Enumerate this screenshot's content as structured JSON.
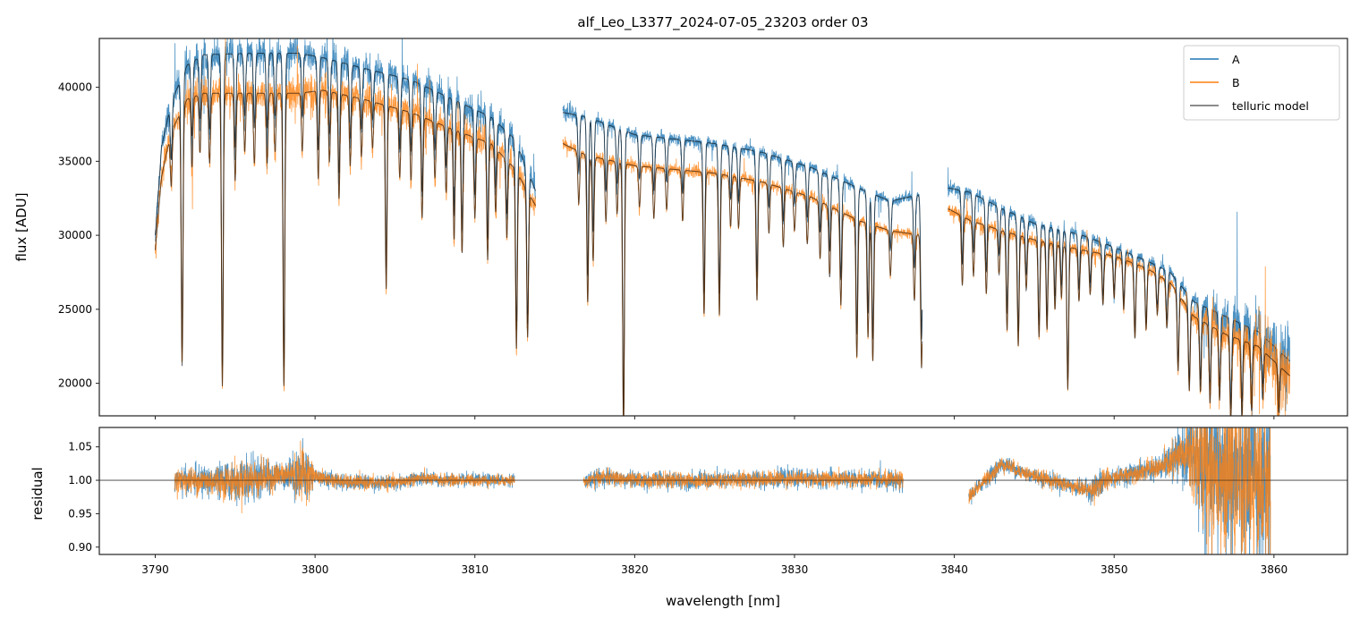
{
  "chart_data": [
    {
      "type": "line",
      "title": "alf_Leo_L3377_2024-07-05_23203  order 03",
      "xlabel": "",
      "ylabel": "flux [ADU]",
      "xlim": [
        3786.5,
        3864.6
      ],
      "ylim": [
        17800,
        43300
      ],
      "xticks": [
        3790,
        3800,
        3810,
        3820,
        3830,
        3840,
        3850,
        3860
      ],
      "yticks": [
        20000,
        25000,
        30000,
        35000,
        40000
      ],
      "ytick_labels": [
        "20000",
        "25000",
        "30000",
        "35000",
        "40000"
      ],
      "legend": {
        "placement": "top-right",
        "entries": [
          "A",
          "B",
          "telluric model"
        ]
      },
      "colors": {
        "A": "#1f77b4",
        "B": "#ff7f0e",
        "telluric model": "#000000"
      },
      "segments": [
        {
          "range": [
            3790.0,
            3813.8
          ],
          "A_continuum": [
            [
              3790.0,
              30000
            ],
            [
              3790.4,
              36000
            ],
            [
              3791.0,
              39000
            ],
            [
              3792.0,
              41500
            ],
            [
              3793.0,
              42200
            ],
            [
              3796.0,
              42300
            ],
            [
              3799.0,
              42300
            ],
            [
              3800.5,
              42000
            ],
            [
              3803,
              41300
            ],
            [
              3806,
              40500
            ],
            [
              3809,
              39000
            ],
            [
              3811,
              38000
            ],
            [
              3812.5,
              36500
            ],
            [
              3813.8,
              33000
            ]
          ],
          "B_continuum": [
            [
              3790.0,
              29000
            ],
            [
              3790.4,
              34000
            ],
            [
              3791.0,
              37000
            ],
            [
              3792.0,
              39200
            ],
            [
              3793.0,
              39600
            ],
            [
              3796.0,
              39600
            ],
            [
              3799.0,
              39600
            ],
            [
              3800.5,
              39800
            ],
            [
              3803,
              39200
            ],
            [
              3806,
              38300
            ],
            [
              3809,
              37000
            ],
            [
              3811,
              36200
            ],
            [
              3812.5,
              34500
            ],
            [
              3813.8,
              32000
            ]
          ],
          "noise": 0.022
        },
        {
          "range": [
            3815.5,
            3838.0
          ],
          "A_continuum": [
            [
              3815.5,
              38300
            ],
            [
              3817,
              38000
            ],
            [
              3820,
              36800
            ],
            [
              3825,
              36200
            ],
            [
              3828,
              35600
            ],
            [
              3831,
              34600
            ],
            [
              3834,
              33200
            ],
            [
              3836,
              32300
            ],
            [
              3838,
              32800
            ]
          ],
          "B_continuum": [
            [
              3815.5,
              36200
            ],
            [
              3817,
              35400
            ],
            [
              3820,
              34700
            ],
            [
              3825,
              34200
            ],
            [
              3828,
              33600
            ],
            [
              3831,
              32600
            ],
            [
              3834,
              31000
            ],
            [
              3836,
              30300
            ],
            [
              3838,
              30000
            ]
          ],
          "noise": 0.01
        },
        {
          "range": [
            3839.6,
            3861.0
          ],
          "A_continuum": [
            [
              3839.6,
              33200
            ],
            [
              3841,
              32900
            ],
            [
              3843,
              31800
            ],
            [
              3845,
              30800
            ],
            [
              3848,
              30000
            ],
            [
              3850,
              29200
            ],
            [
              3852,
              28300
            ],
            [
              3853.5,
              27500
            ],
            [
              3855,
              25500
            ],
            [
              3857,
              24500
            ],
            [
              3859,
              23500
            ],
            [
              3861,
              21500
            ]
          ],
          "B_continuum": [
            [
              3839.6,
              31800
            ],
            [
              3841,
              31000
            ],
            [
              3843,
              30300
            ],
            [
              3845,
              29700
            ],
            [
              3848,
              29000
            ],
            [
              3850,
              28600
            ],
            [
              3852,
              27800
            ],
            [
              3853.5,
              26800
            ],
            [
              3855,
              24500
            ],
            [
              3857,
              23300
            ],
            [
              3859,
              22500
            ],
            [
              3861,
              20500
            ]
          ],
          "noise": 0.012
        }
      ],
      "absorption_lines": [
        [
          3791.0,
          0.1
        ],
        [
          3791.68,
          0.45
        ],
        [
          3792.3,
          0.12
        ],
        [
          3792.8,
          0.1
        ],
        [
          3793.4,
          0.12
        ],
        [
          3794.2,
          0.5
        ],
        [
          3795.0,
          0.15
        ],
        [
          3795.6,
          0.1
        ],
        [
          3796.2,
          0.12
        ],
        [
          3797.0,
          0.12
        ],
        [
          3797.5,
          0.1
        ],
        [
          3798.05,
          0.5
        ],
        [
          3799.2,
          0.1
        ],
        [
          3800.2,
          0.15
        ],
        [
          3800.9,
          0.12
        ],
        [
          3801.5,
          0.18
        ],
        [
          3802.2,
          0.12
        ],
        [
          3802.9,
          0.1
        ],
        [
          3803.6,
          0.08
        ],
        [
          3804.45,
          0.32
        ],
        [
          3805.3,
          0.12
        ],
        [
          3806.0,
          0.12
        ],
        [
          3806.7,
          0.18
        ],
        [
          3807.5,
          0.1
        ],
        [
          3808.2,
          0.12
        ],
        [
          3808.7,
          0.2
        ],
        [
          3809.2,
          0.22
        ],
        [
          3810.0,
          0.15
        ],
        [
          3810.8,
          0.22
        ],
        [
          3811.3,
          0.12
        ],
        [
          3812.0,
          0.15
        ],
        [
          3812.6,
          0.35
        ],
        [
          3813.3,
          0.3
        ],
        [
          3816.5,
          0.1
        ],
        [
          3817.06,
          0.28
        ],
        [
          3817.4,
          0.2
        ],
        [
          3818.2,
          0.12
        ],
        [
          3818.9,
          0.1
        ],
        [
          3819.3,
          0.52
        ],
        [
          3820.3,
          0.08
        ],
        [
          3821.2,
          0.1
        ],
        [
          3822.0,
          0.08
        ],
        [
          3823.0,
          0.1
        ],
        [
          3824.34,
          0.28
        ],
        [
          3825.3,
          0.28
        ],
        [
          3826.0,
          0.1
        ],
        [
          3826.5,
          0.1
        ],
        [
          3827.65,
          0.24
        ],
        [
          3828.4,
          0.1
        ],
        [
          3829.3,
          0.12
        ],
        [
          3830.0,
          0.08
        ],
        [
          3830.8,
          0.1
        ],
        [
          3831.6,
          0.12
        ],
        [
          3832.2,
          0.15
        ],
        [
          3832.9,
          0.2
        ],
        [
          3833.9,
          0.3
        ],
        [
          3834.6,
          0.25
        ],
        [
          3834.9,
          0.3
        ],
        [
          3836.0,
          0.1
        ],
        [
          3837.5,
          0.15
        ],
        [
          3837.95,
          0.3
        ],
        [
          3840.5,
          0.15
        ],
        [
          3841.2,
          0.12
        ],
        [
          3842.0,
          0.15
        ],
        [
          3842.8,
          0.1
        ],
        [
          3843.3,
          0.22
        ],
        [
          3844.0,
          0.25
        ],
        [
          3844.5,
          0.12
        ],
        [
          3845.3,
          0.22
        ],
        [
          3845.8,
          0.2
        ],
        [
          3846.3,
          0.15
        ],
        [
          3846.7,
          0.12
        ],
        [
          3847.1,
          0.33
        ],
        [
          3847.8,
          0.12
        ],
        [
          3848.5,
          0.1
        ],
        [
          3849.3,
          0.12
        ],
        [
          3850.0,
          0.1
        ],
        [
          3850.6,
          0.12
        ],
        [
          3851.3,
          0.18
        ],
        [
          3852.0,
          0.15
        ],
        [
          3852.7,
          0.1
        ],
        [
          3853.3,
          0.12
        ],
        [
          3854.0,
          0.2
        ],
        [
          3854.7,
          0.22
        ],
        [
          3855.4,
          0.2
        ],
        [
          3856.0,
          0.22
        ],
        [
          3856.6,
          0.2
        ],
        [
          3857.3,
          0.25
        ],
        [
          3858.0,
          0.22
        ],
        [
          3858.6,
          0.2
        ],
        [
          3859.3,
          0.15
        ],
        [
          3860.3,
          0.15
        ]
      ],
      "line_width_nm": 0.09
    },
    {
      "type": "line",
      "xlabel": "wavelength [nm]",
      "ylabel": "residual",
      "xlim": [
        3786.5,
        3864.6
      ],
      "ylim": [
        0.889,
        1.079
      ],
      "xticks": [
        3790,
        3800,
        3810,
        3820,
        3830,
        3840,
        3850,
        3860
      ],
      "xtick_labels": [
        "3790",
        "3800",
        "3810",
        "3820",
        "3830",
        "3840",
        "3850",
        "3860"
      ],
      "yticks": [
        0.9,
        0.95,
        1.0,
        1.05
      ],
      "ytick_labels": [
        "0.90",
        "0.95",
        "1.00",
        "1.05"
      ],
      "reference_line": 1.0,
      "segments": [
        {
          "range": [
            3791.2,
            3812.5
          ],
          "trend": [
            [
              3791.2,
              1.0
            ],
            [
              3795,
              0.998
            ],
            [
              3798,
              1.008
            ],
            [
              3799.5,
              1.01
            ],
            [
              3800.5,
              1.003
            ],
            [
              3802,
              0.997
            ],
            [
              3805,
              0.996
            ],
            [
              3806.5,
              1.003
            ],
            [
              3808,
              1.0
            ],
            [
              3812.5,
              1.0
            ]
          ],
          "noise": [
            [
              3791.2,
              0.012
            ],
            [
              3793,
              0.015
            ],
            [
              3796,
              0.022
            ],
            [
              3798,
              0.012
            ],
            [
              3799.3,
              0.03
            ],
            [
              3800,
              0.008
            ],
            [
              3812.5,
              0.006
            ]
          ]
        },
        {
          "range": [
            3816.8,
            3836.8
          ],
          "trend": [
            [
              3816.8,
              0.997
            ],
            [
              3818,
              1.005
            ],
            [
              3820,
              1.0
            ],
            [
              3825,
              1.0
            ],
            [
              3830,
              1.003
            ],
            [
              3836.8,
              1.0
            ]
          ],
          "noise": [
            [
              3816.8,
              0.008
            ],
            [
              3836.8,
              0.009
            ]
          ]
        },
        {
          "range": [
            3840.9,
            3859.8
          ],
          "trend": [
            [
              3840.9,
              0.975
            ],
            [
              3841.5,
              0.99
            ],
            [
              3843,
              1.025
            ],
            [
              3844.5,
              1.01
            ],
            [
              3846,
              1.0
            ],
            [
              3847.5,
              0.99
            ],
            [
              3848.5,
              0.985
            ],
            [
              3849.5,
              1.0
            ],
            [
              3851,
              1.01
            ],
            [
              3853,
              1.02
            ],
            [
              3854.5,
              1.04
            ],
            [
              3856,
              1.02
            ],
            [
              3858,
              1.0
            ],
            [
              3859.8,
              1.0
            ]
          ],
          "noise": [
            [
              3840.9,
              0.008
            ],
            [
              3848,
              0.008
            ],
            [
              3849.2,
              0.015
            ],
            [
              3850,
              0.008
            ],
            [
              3853,
              0.012
            ],
            [
              3854.5,
              0.03
            ],
            [
              3855.5,
              0.08
            ],
            [
              3859.8,
              0.09
            ]
          ]
        }
      ]
    }
  ]
}
